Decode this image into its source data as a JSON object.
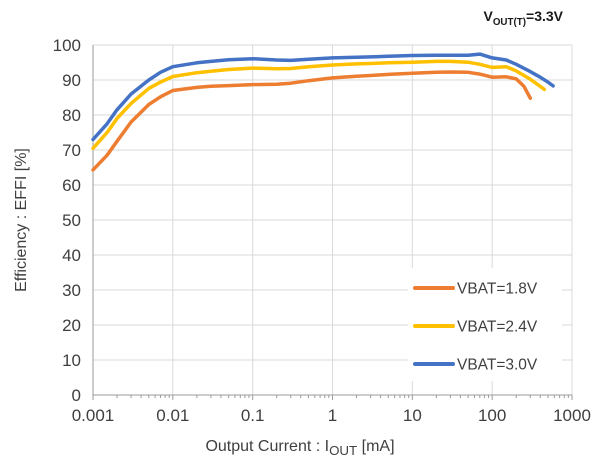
{
  "title": {
    "pre": "V",
    "sub": "OUT(T)",
    "post": "=3.3V"
  },
  "colors": {
    "background": "#ffffff",
    "gridline": "#d9d9d9",
    "axis_line": "#9b9b9b",
    "tick": "#9b9b9b",
    "text": "#3f3f3f",
    "title_text": "#1a1a1a",
    "legend_background": "#ffffff"
  },
  "chart_data": {
    "type": "line",
    "title": "VOUT(T)=3.3V",
    "x_axis": {
      "scale": "log",
      "min": 0.001,
      "max": 1000,
      "tick_labels": [
        "0.001",
        "0.01",
        "0.1",
        "1",
        "10",
        "100",
        "1000"
      ],
      "label_pre": "Output Current : I",
      "label_sub": "OUT",
      "label_post": " [mA]"
    },
    "y_axis": {
      "scale": "linear",
      "min": 0,
      "max": 100,
      "tick_step": 10,
      "tick_labels": [
        "0",
        "10",
        "20",
        "30",
        "40",
        "50",
        "60",
        "70",
        "80",
        "90",
        "100"
      ],
      "label": "Efficiency : EFFI [%]"
    },
    "grid": true,
    "legend": {
      "position": "inside-bottom-right"
    },
    "series": [
      {
        "name": "VBAT=1.8V",
        "color": "#ED7D31",
        "points": [
          [
            0.001,
            64.3
          ],
          [
            0.0015,
            68.5
          ],
          [
            0.002,
            72.5
          ],
          [
            0.003,
            78.0
          ],
          [
            0.005,
            83.0
          ],
          [
            0.007,
            85.2
          ],
          [
            0.01,
            87.0
          ],
          [
            0.02,
            87.9
          ],
          [
            0.03,
            88.2
          ],
          [
            0.05,
            88.4
          ],
          [
            0.1,
            88.7
          ],
          [
            0.2,
            88.8
          ],
          [
            0.3,
            89.1
          ],
          [
            0.5,
            89.8
          ],
          [
            1,
            90.6
          ],
          [
            2,
            91.1
          ],
          [
            3,
            91.3
          ],
          [
            5,
            91.6
          ],
          [
            10,
            91.9
          ],
          [
            20,
            92.2
          ],
          [
            30,
            92.3
          ],
          [
            50,
            92.2
          ],
          [
            70,
            91.7
          ],
          [
            100,
            90.8
          ],
          [
            150,
            90.9
          ],
          [
            200,
            90.3
          ],
          [
            250,
            88.2
          ],
          [
            300,
            84.8
          ]
        ]
      },
      {
        "name": "VBAT=2.4V",
        "color": "#FFC000",
        "points": [
          [
            0.001,
            70.5
          ],
          [
            0.0015,
            75.0
          ],
          [
            0.002,
            79.0
          ],
          [
            0.003,
            83.3
          ],
          [
            0.005,
            87.6
          ],
          [
            0.007,
            89.4
          ],
          [
            0.01,
            91.0
          ],
          [
            0.02,
            92.1
          ],
          [
            0.03,
            92.5
          ],
          [
            0.05,
            93.0
          ],
          [
            0.1,
            93.4
          ],
          [
            0.2,
            93.2
          ],
          [
            0.3,
            93.3
          ],
          [
            0.5,
            93.8
          ],
          [
            1,
            94.3
          ],
          [
            2,
            94.6
          ],
          [
            3,
            94.7
          ],
          [
            5,
            94.9
          ],
          [
            10,
            95.1
          ],
          [
            20,
            95.3
          ],
          [
            30,
            95.3
          ],
          [
            50,
            95.1
          ],
          [
            70,
            94.5
          ],
          [
            100,
            93.6
          ],
          [
            150,
            93.8
          ],
          [
            200,
            92.6
          ],
          [
            300,
            90.2
          ],
          [
            400,
            88.2
          ],
          [
            450,
            87.3
          ]
        ]
      },
      {
        "name": "VBAT=3.0V",
        "color": "#4472C4",
        "points": [
          [
            0.001,
            73.0
          ],
          [
            0.0015,
            77.5
          ],
          [
            0.002,
            81.5
          ],
          [
            0.003,
            86.0
          ],
          [
            0.005,
            90.0
          ],
          [
            0.007,
            92.2
          ],
          [
            0.01,
            93.8
          ],
          [
            0.02,
            94.9
          ],
          [
            0.03,
            95.3
          ],
          [
            0.05,
            95.8
          ],
          [
            0.1,
            96.1
          ],
          [
            0.2,
            95.7
          ],
          [
            0.3,
            95.6
          ],
          [
            0.5,
            95.9
          ],
          [
            1,
            96.3
          ],
          [
            2,
            96.5
          ],
          [
            3,
            96.6
          ],
          [
            5,
            96.8
          ],
          [
            10,
            97.0
          ],
          [
            20,
            97.1
          ],
          [
            30,
            97.1
          ],
          [
            50,
            97.1
          ],
          [
            70,
            97.4
          ],
          [
            100,
            96.3
          ],
          [
            150,
            95.7
          ],
          [
            200,
            94.5
          ],
          [
            300,
            92.4
          ],
          [
            400,
            90.8
          ],
          [
            500,
            89.4
          ],
          [
            580,
            88.3
          ]
        ]
      }
    ]
  }
}
